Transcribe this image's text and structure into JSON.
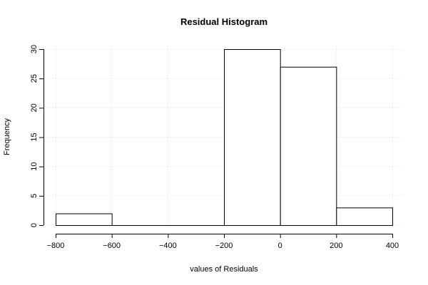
{
  "chart_data": {
    "type": "bar",
    "title": "Residual Histogram",
    "xlabel": "values of Residuals",
    "ylabel": "Frequency",
    "bins": [
      {
        "from": -800,
        "to": -600,
        "count": 2
      },
      {
        "from": -600,
        "to": -400,
        "count": 0
      },
      {
        "from": -400,
        "to": -200,
        "count": 0
      },
      {
        "from": -200,
        "to": 0,
        "count": 30
      },
      {
        "from": 0,
        "to": 200,
        "count": 27
      },
      {
        "from": 200,
        "to": 400,
        "count": 3
      }
    ],
    "xlim": [
      -800,
      400
    ],
    "ylim": [
      0,
      30
    ],
    "xticks": [
      -800,
      -600,
      -400,
      -200,
      0,
      200,
      400
    ],
    "yticks": [
      0,
      5,
      10,
      15,
      20,
      25,
      30
    ],
    "xtick_labels": [
      "−800",
      "−600",
      "−400",
      "−200",
      "0",
      "200",
      "400"
    ],
    "ytick_labels": [
      "0",
      "5",
      "10",
      "15",
      "20",
      "25",
      "30"
    ],
    "grid": true,
    "colors": {
      "bar_fill": "#ffffff",
      "bar_stroke": "#000000",
      "grid": "#d9d9d9"
    }
  }
}
